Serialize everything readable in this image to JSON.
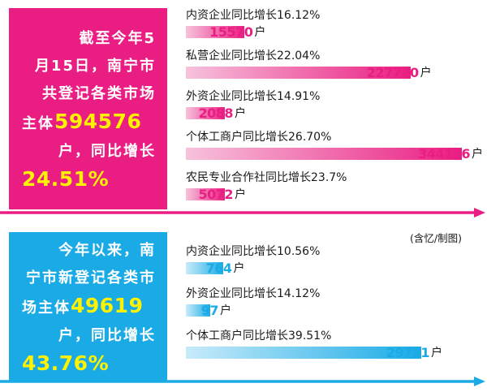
{
  "colors": {
    "pink": "#ea1e82",
    "pink_light": "#f7c2dc",
    "cyan": "#1aabe6",
    "cyan_light": "#c8ebfa",
    "yellow": "#fff200"
  },
  "top_panel": {
    "lines": [
      "截至今年5",
      "月15日，南宁市",
      "共登记各类市场"
    ],
    "main_prefix": "主体",
    "main_number": "594576",
    "growth_text": "户，同比增长",
    "growth_pct": "24.51%"
  },
  "bottom_panel": {
    "lines": [
      "今年以来，南",
      "宁市新登记各类市"
    ],
    "main_prefix": "场主体",
    "main_number": "49619",
    "growth_text": "户，同比增长",
    "growth_pct": "43.76%"
  },
  "credit": "(含忆/制图)",
  "chart_data": [
    {
      "type": "bar",
      "orientation": "horizontal",
      "unit": "户",
      "categories": [
        "内资企业同比增长16.12%",
        "私营企业同比增长22.04%",
        "外资企业同比增长14.91%",
        "个体工商户同比增长26.70%",
        "农民专业合作社同比增长23.7%"
      ],
      "values": [
        15570,
        227720,
        2088,
        344126,
        5072
      ]
    },
    {
      "type": "bar",
      "orientation": "horizontal",
      "unit": "户",
      "categories": [
        "内资企业同比增长10.56%",
        "外资企业同比增长14.12%",
        "个体工商户同比增长39.51%"
      ],
      "values": [
        764,
        97,
        29731
      ]
    }
  ]
}
